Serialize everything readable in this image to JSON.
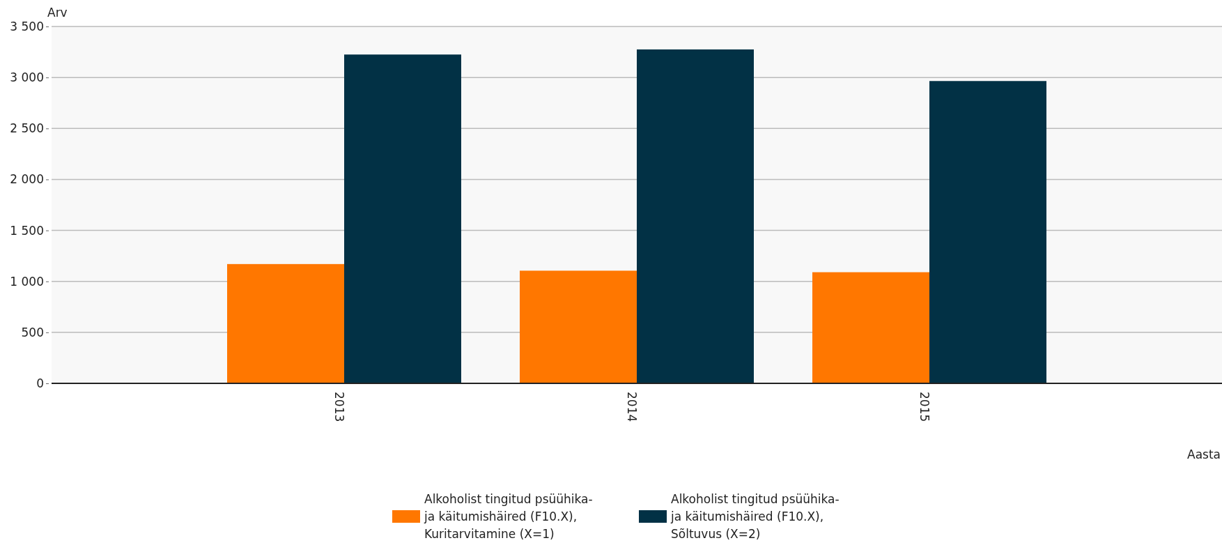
{
  "chart_data": {
    "type": "bar",
    "xlabel": "Aasta",
    "ylabel": "Arv",
    "categories": [
      "2013",
      "2014",
      "2015"
    ],
    "series": [
      {
        "name": "Alkoholist tingitud psüühika- ja käitumishäired (F10.X), Kuritarvitamine (X=1)",
        "color": "#ff7700",
        "values": [
          1170,
          1105,
          1090
        ]
      },
      {
        "name": "Alkoholist tingitud psüühika- ja käitumishäired (F10.X), Sõltuvus (X=2)",
        "color": "#023145",
        "values": [
          3225,
          3275,
          2965
        ]
      }
    ],
    "ylim": [
      0,
      3500
    ],
    "yticks": [
      0,
      {
        "value": 500,
        "label": "500"
      },
      {
        "value": 1000,
        "label": "1 000"
      },
      {
        "value": 1500,
        "label": "1 500"
      },
      {
        "value": 2000,
        "label": "2 000"
      },
      {
        "value": 2500,
        "label": "2 500"
      },
      {
        "value": 3000,
        "label": "3 000"
      },
      {
        "value": 3500,
        "label": "3 500"
      }
    ],
    "grid": "y",
    "legend": "bottom"
  }
}
